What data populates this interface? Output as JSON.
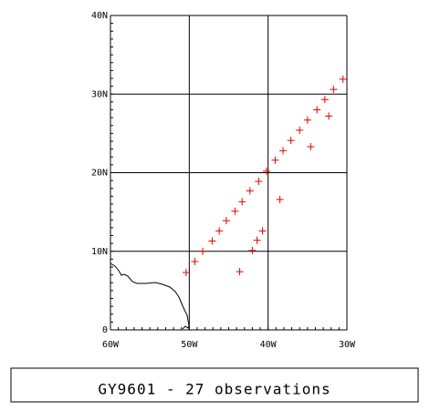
{
  "chart_data": {
    "type": "scatter",
    "title": "GY9601 - 27 observations",
    "color": "#e00000",
    "x": [
      -50.4,
      -49.3,
      -48.3,
      -47.1,
      -46.2,
      -45.3,
      -44.2,
      -43.3,
      -42.3,
      -41.2,
      -40.2,
      -39.1,
      -38.1,
      -37.1,
      -36.0,
      -35.0,
      -33.8,
      -32.8,
      -31.7,
      -30.5,
      -43.6,
      -42.0,
      -41.4,
      -40.7,
      -38.5,
      -34.6,
      -32.3
    ],
    "values": [
      7.3,
      8.7,
      10.0,
      11.3,
      12.6,
      13.9,
      15.1,
      16.3,
      17.7,
      18.9,
      20.2,
      21.6,
      22.8,
      24.1,
      25.4,
      26.7,
      28.0,
      29.3,
      30.6,
      31.9,
      7.4,
      10.1,
      11.4,
      12.6,
      16.6,
      23.3,
      27.2
    ],
    "xlim": [
      -60,
      -30
    ],
    "ylim": [
      0,
      40
    ],
    "xticks": [
      {
        "value": -60,
        "label": "60W"
      },
      {
        "value": -50,
        "label": "50W"
      },
      {
        "value": -40,
        "label": "40W"
      },
      {
        "value": -30,
        "label": "30W"
      }
    ],
    "yticks": [
      0,
      {
        "value": 10,
        "label": "10N"
      },
      {
        "value": 20,
        "label": "20N"
      },
      {
        "value": 30,
        "label": "30N"
      },
      {
        "value": 40,
        "label": "40N"
      }
    ],
    "grid": true
  }
}
